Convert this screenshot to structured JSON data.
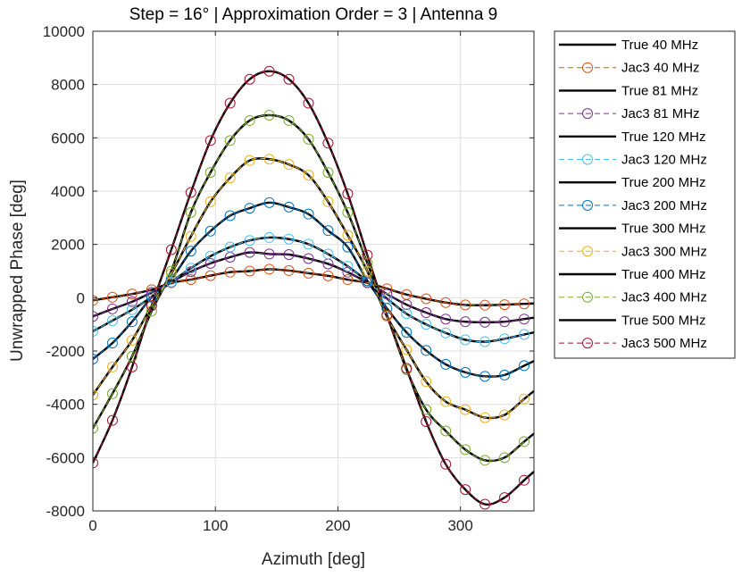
{
  "chart_data": {
    "type": "line",
    "title": "Step = 16° | Approximation Order = 3 | Antenna 9",
    "xlabel": "Azimuth [deg]",
    "ylabel": "Unwrapped Phase [deg]",
    "xlim": [
      0,
      360
    ],
    "ylim": [
      -8000,
      10000
    ],
    "xticks": [
      0,
      100,
      200,
      300
    ],
    "yticks": [
      -8000,
      -6000,
      -4000,
      -2000,
      0,
      2000,
      4000,
      6000,
      8000,
      10000
    ],
    "grid": true,
    "legend_position": "outside-right",
    "colors": {
      "true": "#000000",
      "jac3_40": "#D95319",
      "jac3_81": "#7E2F8E",
      "jac3_120": "#4DBEEE",
      "jac3_200": "#0072BD",
      "jac3_300": "#EDB120",
      "jac3_400": "#77AC30",
      "jac3_500": "#A2142F"
    },
    "true_series": [
      {
        "name": "True 40 MHz",
        "frequency_mhz": 40
      },
      {
        "name": "True 81 MHz",
        "frequency_mhz": 81
      },
      {
        "name": "True 120 MHz",
        "frequency_mhz": 120
      },
      {
        "name": "True 200 MHz",
        "frequency_mhz": 200
      },
      {
        "name": "True 300 MHz",
        "frequency_mhz": 300
      },
      {
        "name": "True 400 MHz",
        "frequency_mhz": 400
      },
      {
        "name": "True 500 MHz",
        "frequency_mhz": 500
      }
    ],
    "jac3_x": [
      0,
      16,
      32,
      48,
      64,
      80,
      96,
      112,
      128,
      144,
      160,
      176,
      192,
      208,
      224,
      240,
      256,
      272,
      288,
      304,
      320,
      336,
      352
    ],
    "jac3_series": [
      {
        "name": "Jac3 40 MHz",
        "values": [
          -100,
          20,
          140,
          300,
          560,
          680,
          830,
          960,
          1000,
          1070,
          1020,
          920,
          820,
          680,
          560,
          340,
          120,
          -40,
          -180,
          -270,
          -280,
          -260,
          -230
        ]
      },
      {
        "name": "Jac3 81 MHz",
        "values": [
          -700,
          -420,
          -150,
          200,
          590,
          980,
          1290,
          1520,
          1700,
          1640,
          1620,
          1470,
          1270,
          960,
          570,
          140,
          -260,
          -560,
          -800,
          -900,
          -920,
          -900,
          -800
        ]
      },
      {
        "name": "Jac3 120 MHz",
        "values": [
          -1260,
          -860,
          -450,
          30,
          590,
          1110,
          1560,
          1900,
          2150,
          2260,
          2200,
          2010,
          1640,
          1180,
          620,
          -30,
          -600,
          -1000,
          -1320,
          -1580,
          -1650,
          -1540,
          -1380
        ]
      },
      {
        "name": "Jac3 200 MHz",
        "values": [
          -2300,
          -1700,
          -900,
          20,
          700,
          1750,
          2500,
          3080,
          3360,
          3570,
          3400,
          3140,
          2520,
          1900,
          640,
          -400,
          -1300,
          -1980,
          -2500,
          -2800,
          -2950,
          -2900,
          -2550
        ]
      },
      {
        "name": "Jac3 300 MHz",
        "values": [
          -3650,
          -2600,
          -1600,
          -300,
          900,
          2300,
          3600,
          4500,
          5150,
          5200,
          5000,
          4600,
          3600,
          2350,
          1000,
          -700,
          -1950,
          -3150,
          -3900,
          -4200,
          -4500,
          -4400,
          -3800
        ]
      },
      {
        "name": "Jac3 400 MHz",
        "values": [
          -4900,
          -3600,
          -2200,
          -500,
          1000,
          3200,
          4700,
          5900,
          6650,
          6850,
          6650,
          5950,
          4700,
          3200,
          1300,
          -650,
          -2700,
          -4200,
          -5000,
          -5700,
          -6100,
          -6000,
          -5400
        ]
      },
      {
        "name": "Jac3 500 MHz",
        "values": [
          -6200,
          -4600,
          -2600,
          -300,
          1800,
          3950,
          5900,
          7300,
          8200,
          8500,
          8200,
          7300,
          5800,
          3900,
          1600,
          -650,
          -2650,
          -4650,
          -6250,
          -7200,
          -7750,
          -7500,
          -6850
        ]
      }
    ]
  }
}
